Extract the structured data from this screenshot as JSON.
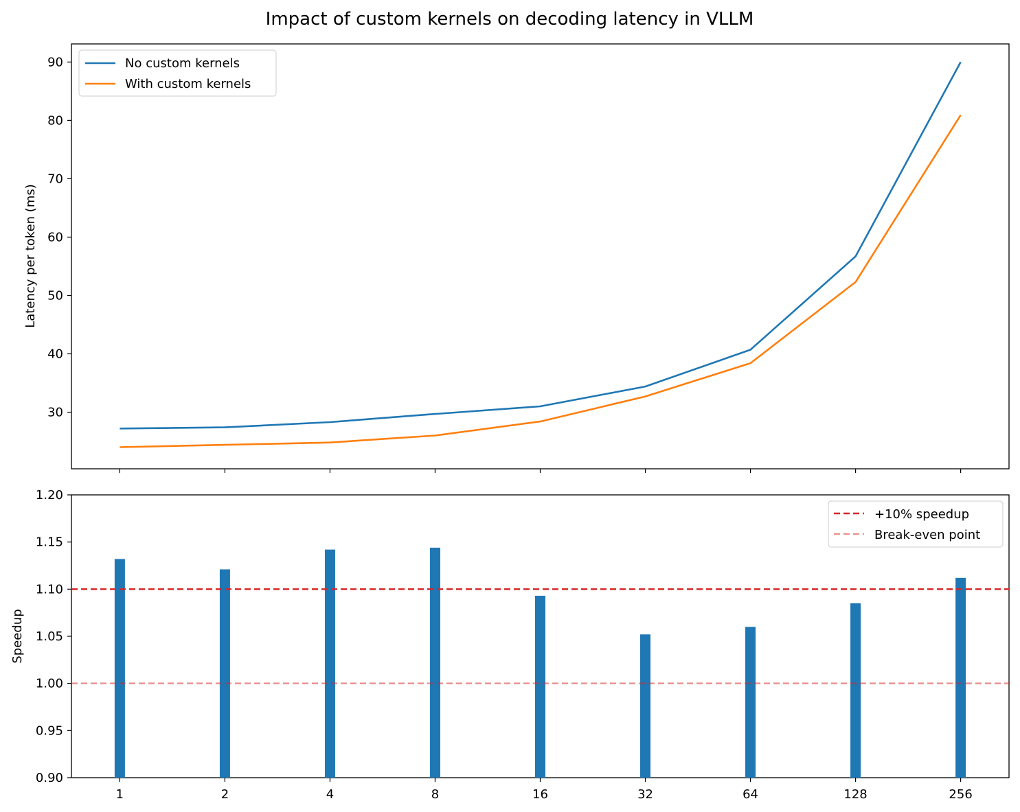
{
  "figure": {
    "title": "Impact of custom kernels on decoding latency in VLLM"
  },
  "chart_data": [
    {
      "type": "line",
      "ylabel": "Latency per token (ms)",
      "xlabel": "",
      "x_positions": [
        1,
        2,
        3,
        4,
        5,
        6,
        7,
        8,
        9
      ],
      "xlim": [
        0.54,
        9.46
      ],
      "ylim": [
        20.3,
        93.1
      ],
      "yticks": [
        30,
        40,
        50,
        60,
        70,
        80,
        90
      ],
      "grid": false,
      "legend_position": "upper-left",
      "series": [
        {
          "name": "No custom kernels",
          "color": "#1f77b4",
          "values": [
            27.2,
            27.4,
            28.3,
            29.7,
            31.0,
            34.4,
            40.7,
            56.7,
            90.0
          ]
        },
        {
          "name": "With custom kernels",
          "color": "#ff7f0e",
          "values": [
            24.0,
            24.4,
            24.8,
            26.0,
            28.4,
            32.7,
            38.4,
            52.3,
            80.9
          ]
        }
      ]
    },
    {
      "type": "bar",
      "ylabel": "Speedup",
      "xlabel": "",
      "categories": [
        "1",
        "2",
        "4",
        "8",
        "16",
        "32",
        "64",
        "128",
        "256"
      ],
      "values": [
        1.132,
        1.121,
        1.142,
        1.144,
        1.093,
        1.052,
        1.06,
        1.085,
        1.112
      ],
      "bar_color": "#1f77b4",
      "ylim": [
        0.9,
        1.2
      ],
      "yticks": [
        "0.90",
        "0.95",
        "1.00",
        "1.05",
        "1.10",
        "1.15",
        "1.20"
      ],
      "grid": false,
      "legend_position": "upper-right",
      "reference_lines": [
        {
          "name": "+10% speedup",
          "y": 1.1,
          "color": "#d62728",
          "opacity": 1.0
        },
        {
          "name": "Break-even point",
          "y": 1.0,
          "color": "#d62728",
          "opacity": 0.5
        }
      ]
    }
  ]
}
